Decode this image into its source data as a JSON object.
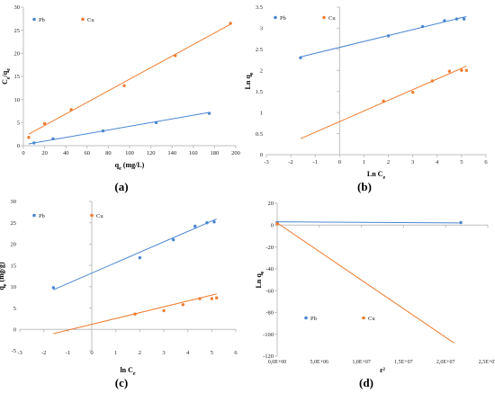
{
  "colors": {
    "pb": "#4A86D0",
    "cu": "#ED7D31",
    "axis": "#BFBFBF",
    "text": "#222222"
  },
  "panels": [
    {
      "label": "(a)"
    },
    {
      "label": "(b)"
    },
    {
      "label": "(c)"
    },
    {
      "label": "(d)"
    }
  ],
  "chart_data": [
    {
      "type": "scatter",
      "xlabel": "qe (mg/L)",
      "ylabel": "Ce/qe",
      "xlim": [
        0,
        200
      ],
      "ylim": [
        0,
        30
      ],
      "xticks": [
        "0",
        "20",
        "40",
        "60",
        "80",
        "100",
        "120",
        "140",
        "160",
        "180",
        "200"
      ],
      "yticks": [
        "0",
        "5",
        "10",
        "15",
        "20",
        "25",
        "30"
      ],
      "legend": "top-left",
      "series": [
        {
          "name": "Pb",
          "color": "#4A86D0",
          "x": [
            10,
            28,
            75,
            125,
            175
          ],
          "y": [
            0.6,
            1.5,
            3.2,
            5.0,
            7.0
          ],
          "trendline": [
            [
              5,
              0.4
            ],
            [
              175,
              7.2
            ]
          ]
        },
        {
          "name": "Cu",
          "color": "#ED7D31",
          "x": [
            5,
            20,
            45,
            95,
            143,
            195
          ],
          "y": [
            1.8,
            4.8,
            7.8,
            13.0,
            19.5,
            26.5
          ],
          "trendline": [
            [
              5,
              2.5
            ],
            [
              195,
              26.3
            ]
          ]
        }
      ]
    },
    {
      "type": "scatter",
      "xlabel": "Ln Ce",
      "ylabel": "Ln qe",
      "xlim": [
        -3,
        6
      ],
      "ylim": [
        0,
        3.5
      ],
      "xticks": [
        "-3",
        "-2",
        "-1",
        "0",
        "1",
        "2",
        "3",
        "4",
        "5",
        "6"
      ],
      "yticks": [
        "0",
        "0.5",
        "1",
        "1.5",
        "2",
        "2.5",
        "3",
        "3.5"
      ],
      "legend": "top-left",
      "series": [
        {
          "name": "Pb",
          "color": "#4A86D0",
          "x": [
            -1.6,
            2.0,
            3.4,
            4.3,
            4.8,
            5.1
          ],
          "y": [
            2.3,
            2.82,
            3.04,
            3.18,
            3.22,
            3.22
          ],
          "trendline": [
            [
              -1.6,
              2.32
            ],
            [
              5.2,
              3.28
            ]
          ]
        },
        {
          "name": "Cu",
          "color": "#ED7D31",
          "x": [
            1.8,
            3.0,
            3.8,
            4.5,
            5.0,
            5.2
          ],
          "y": [
            1.27,
            1.48,
            1.75,
            1.98,
            2.0,
            2.0
          ],
          "trendline": [
            [
              -1.6,
              0.38
            ],
            [
              5.2,
              2.1
            ]
          ]
        }
      ]
    },
    {
      "type": "scatter",
      "xlabel": "ln Ce",
      "ylabel": "qe (mg/g)",
      "xlim": [
        -3,
        6
      ],
      "ylim": [
        -5,
        30
      ],
      "xticks": [
        "-3",
        "-2",
        "-1",
        "0",
        "1",
        "2",
        "3",
        "4",
        "5",
        "6"
      ],
      "yticks": [
        "-5",
        "0",
        "5",
        "10",
        "15",
        "20",
        "25",
        "30"
      ],
      "legend": "top",
      "series": [
        {
          "name": "Pb",
          "color": "#4A86D0",
          "x": [
            -1.6,
            2.0,
            3.4,
            4.3,
            4.8,
            5.1
          ],
          "y": [
            9.8,
            16.8,
            21.0,
            24.2,
            25.0,
            25.2
          ],
          "trendline": [
            [
              -1.6,
              9.3
            ],
            [
              5.2,
              25.9
            ]
          ]
        },
        {
          "name": "Cu",
          "color": "#ED7D31",
          "x": [
            1.8,
            3.0,
            3.8,
            4.5,
            5.0,
            5.2
          ],
          "y": [
            3.6,
            4.4,
            5.8,
            7.2,
            7.2,
            7.4
          ],
          "trendline": [
            [
              -1.6,
              -1.0
            ],
            [
              5.2,
              8.3
            ]
          ]
        }
      ]
    },
    {
      "type": "scatter",
      "xlabel": "ε²",
      "ylabel": "Ln qe",
      "xlim": [
        0,
        25000000
      ],
      "ylim": [
        -120,
        20
      ],
      "xticks": [
        "0,0E+00",
        "5,0E+06",
        "1,0E+07",
        "1,5E+07",
        "2,0E+07",
        "2,5E+07"
      ],
      "yticks": [
        "-120",
        "-100",
        "-80",
        "-60",
        "-40",
        "-20",
        "0",
        "20"
      ],
      "legend": "bottom-left",
      "series": [
        {
          "name": "Pb",
          "color": "#4A86D0",
          "x": [
            0,
            21800000
          ],
          "y": [
            2.3,
            2.3
          ],
          "trendline": [
            [
              0,
              3.0
            ],
            [
              21800000,
              2.0
            ]
          ]
        },
        {
          "name": "Cu",
          "color": "#ED7D31",
          "x": [
            0
          ],
          "y": [
            1.2
          ],
          "trendline": [
            [
              0,
              2.0
            ],
            [
              21000000,
              -108
            ]
          ]
        }
      ]
    }
  ]
}
